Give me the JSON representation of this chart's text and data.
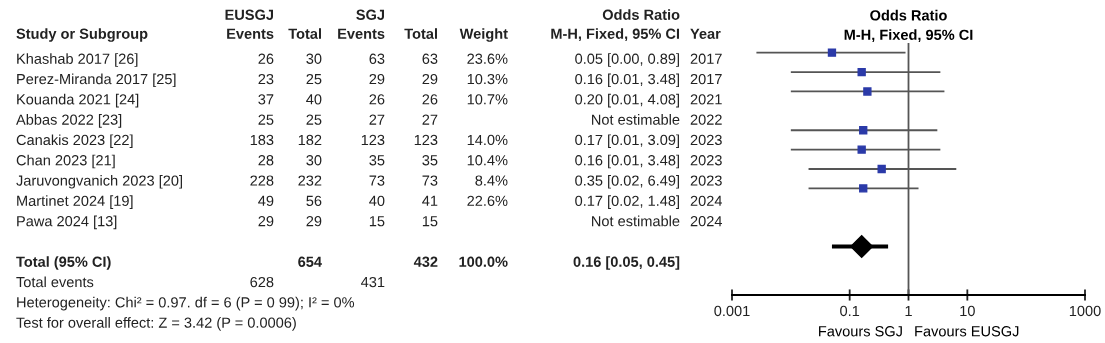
{
  "chart_data": [
    {
      "type": "other",
      "annotations": [
        null,
        "EUSGJ",
        null,
        "SGJ",
        null,
        null,
        "Odds Ratio",
        null,
        "Study or Subgroup",
        "Events",
        "Total",
        "Events",
        "Total",
        "Weight",
        "M-H, Fixed, 95% CI",
        "Year",
        "Khashab 2017 [26]",
        "26",
        "30",
        "63",
        "63",
        "23.6%",
        "0.05 [0.00, 0.89]",
        "2017",
        "Perez-Miranda 2017 [25]",
        "23",
        "25",
        "29",
        "29",
        "10.3%",
        "0.16 [0.01, 3.48]",
        "2017",
        "Kouanda 2021 [24]",
        "37",
        "40",
        "26",
        "26",
        "10.7%",
        "0.20 [0.01, 4.08]",
        "2021",
        "Abbas 2022 [23]",
        "25",
        "25",
        "27",
        "27",
        null,
        "Not estimable",
        "2022",
        "Canakis 2023 [22]",
        "183",
        "182",
        "123",
        "123",
        "14.0%",
        "0.17 [0.01, 3.09]",
        "2023",
        "Chan 2023 [21]",
        "28",
        "30",
        "35",
        "35",
        "10.4%",
        "0.16 [0.01, 3.48]",
        "2023",
        "Jaruvongvanich 2023 [20]",
        "228",
        "232",
        "73",
        "73",
        "8.4%",
        "0.35 [0.02, 6.49]",
        "2023",
        "Martinet 2024 [19]",
        "49",
        "56",
        "40",
        "41",
        "22.6%",
        "0.17 [0.02, 1.48]",
        "2024",
        "Pawa 2024 [13]",
        "29",
        "29",
        "15",
        "15",
        null,
        "Not estimable",
        "2024",
        null,
        null,
        null,
        null,
        null,
        null,
        null,
        null,
        "Total (95% CI)",
        null,
        "654",
        null,
        "432",
        "100.0%",
        "0.16 [0.05, 0.45]",
        null,
        "Total events",
        "628",
        null,
        "431",
        null,
        null,
        null,
        null,
        "Heterogeneity: Chi² = 0.97. df = 6 (P = 0 99); I² = 0%",
        null,
        null,
        null,
        null,
        null,
        null,
        null,
        "Test for overall effect: Z = 3.42 (P = 0.0006)",
        null,
        null,
        null,
        null,
        null,
        null,
        null
      ]
    },
    {
      "type": "scatter",
      "orientation": "horizontal",
      "title": "Odds Ratio",
      "subtitle": "M-H, Fixed, 95% CI",
      "categories": [
        null,
        null,
        null,
        null,
        null,
        null,
        null,
        null,
        null,
        null,
        null,
        null,
        null
      ],
      "series": [
        {
          "color": "#2b3aa8",
          "marker": "square",
          "values": [
            0.05,
            0.16,
            0.2,
            null,
            0.17,
            0.16,
            0.35,
            0.17,
            null,
            null,
            null,
            null,
            null
          ],
          "errors": [
            [
              0.0026,
              0.89
            ],
            [
              0.01,
              3.48
            ],
            [
              0.01,
              4.08
            ],
            null,
            [
              0.01,
              3.09
            ],
            [
              0.01,
              3.48
            ],
            [
              0.02,
              6.49
            ],
            [
              0.02,
              1.48
            ],
            null,
            null,
            null,
            null,
            null
          ]
        },
        {
          "color": "#000000",
          "marker": "diamond",
          "values": [
            null,
            null,
            null,
            null,
            null,
            null,
            null,
            null,
            null,
            null,
            0.16,
            null,
            null
          ],
          "errors": [
            null,
            null,
            null,
            null,
            null,
            null,
            null,
            null,
            null,
            null,
            [
              0.05,
              0.45
            ],
            null,
            null
          ]
        }
      ],
      "log": "x",
      "xlim": [
        0.001,
        1000
      ],
      "xticks": [
        0.001,
        0.1,
        1,
        10,
        1000
      ],
      "ref_lines": [
        {
          "axis": "x",
          "value": 1,
          "color": "#555555"
        }
      ],
      "annotations": [
        "Favours SGJ",
        "Favours EUSGJ"
      ],
      "tick_labels": "x",
      "grid": false,
      "legend": false
    }
  ]
}
